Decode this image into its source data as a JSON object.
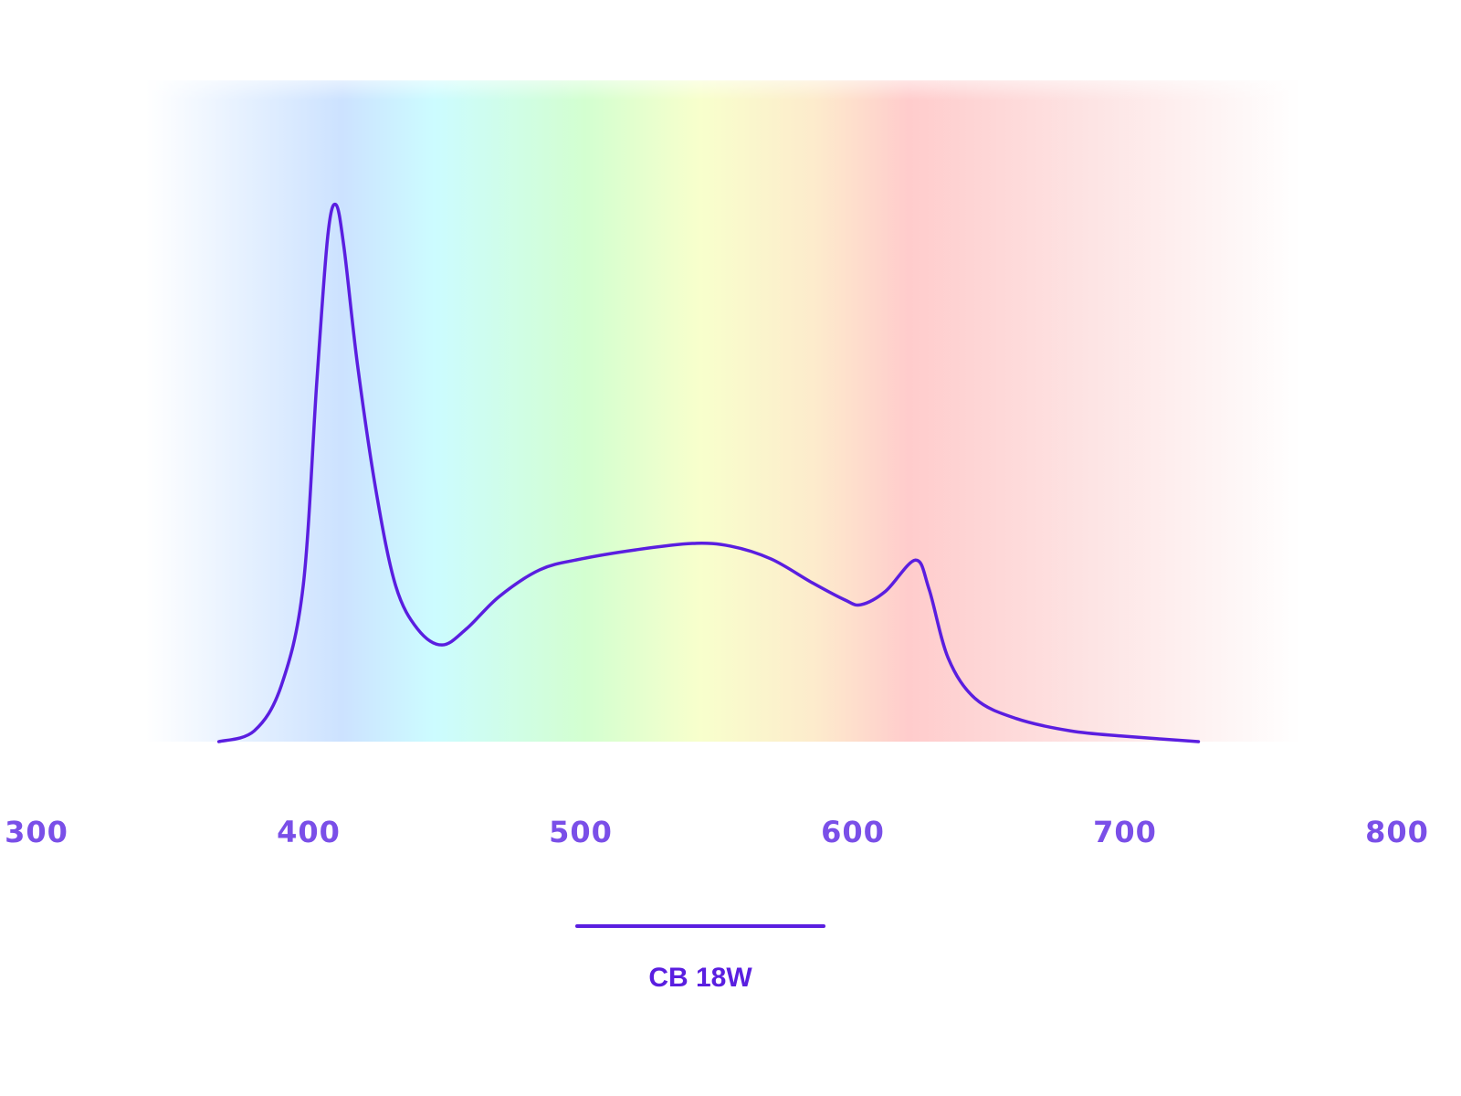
{
  "chart_data": {
    "type": "line",
    "title": "",
    "xlabel": "",
    "ylabel": "",
    "xlim": [
      300,
      800
    ],
    "ylim": [
      0,
      1
    ],
    "grid": false,
    "x_ticks": [
      "300",
      "400",
      "500",
      "600",
      "700",
      "800"
    ],
    "legend_placement": "bottom-center",
    "background": "visible-spectrum gradient",
    "series": [
      {
        "name": "CB 18W",
        "color": "#5a1ee0",
        "points": [
          [
            367,
            0
          ],
          [
            380,
            0.02
          ],
          [
            390,
            0.105
          ],
          [
            398,
            0.29
          ],
          [
            403,
            0.67
          ],
          [
            407,
            0.94
          ],
          [
            410,
            1.0
          ],
          [
            413,
            0.92
          ],
          [
            418,
            0.7
          ],
          [
            425,
            0.46
          ],
          [
            432,
            0.29
          ],
          [
            440,
            0.21
          ],
          [
            449,
            0.18
          ],
          [
            458,
            0.21
          ],
          [
            470,
            0.27
          ],
          [
            485,
            0.32
          ],
          [
            500,
            0.34
          ],
          [
            520,
            0.357
          ],
          [
            541,
            0.369
          ],
          [
            555,
            0.364
          ],
          [
            570,
            0.34
          ],
          [
            585,
            0.296
          ],
          [
            597,
            0.264
          ],
          [
            603,
            0.255
          ],
          [
            612,
            0.28
          ],
          [
            623,
            0.338
          ],
          [
            628,
            0.284
          ],
          [
            635,
            0.156
          ],
          [
            645,
            0.08
          ],
          [
            660,
            0.043
          ],
          [
            680,
            0.02
          ],
          [
            700,
            0.01
          ],
          [
            727,
            0
          ]
        ]
      }
    ],
    "colors": {
      "tick_label": "#7a4fe8",
      "line": "#5a1ee0",
      "legend_text": "#5a1ee0"
    }
  }
}
